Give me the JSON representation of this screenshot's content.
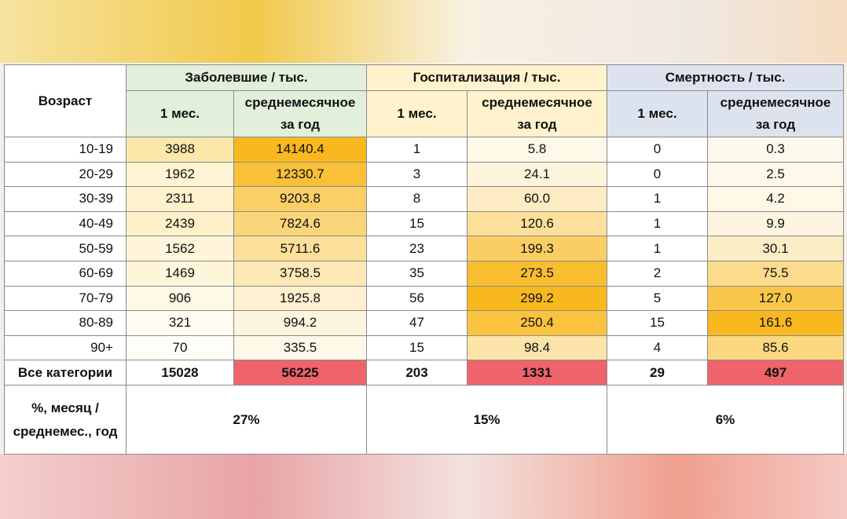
{
  "header": {
    "age": "Возраст",
    "groups": [
      {
        "title": "Заболевшие / тыс.",
        "columns": [
          "1 мес.",
          "среднемесячное за год"
        ]
      },
      {
        "title": "Госпитализация / тыс.",
        "columns": [
          "1 мес.",
          "среднемесячное за год"
        ]
      },
      {
        "title": "Смертность / тыс.",
        "columns": [
          "1 мес.",
          "среднемесячное за год"
        ]
      }
    ]
  },
  "rows": [
    [
      "10-19",
      "3988",
      "14140.4",
      "1",
      "5.8",
      "0",
      "0.3"
    ],
    [
      "20-29",
      "1962",
      "12330.7",
      "3",
      "24.1",
      "0",
      "2.5"
    ],
    [
      "30-39",
      "2311",
      "9203.8",
      "8",
      "60.0",
      "1",
      "4.2"
    ],
    [
      "40-49",
      "2439",
      "7824.6",
      "15",
      "120.6",
      "1",
      "9.9"
    ],
    [
      "50-59",
      "1562",
      "5711.6",
      "23",
      "199.3",
      "1",
      "30.1"
    ],
    [
      "60-69",
      "1469",
      "3758.5",
      "35",
      "273.5",
      "2",
      "75.5"
    ],
    [
      "70-79",
      "906",
      "1925.8",
      "56",
      "299.2",
      "5",
      "127.0"
    ],
    [
      "80-89",
      "321",
      "994.2",
      "47",
      "250.4",
      "15",
      "161.6"
    ],
    [
      "90+",
      "70",
      "335.5",
      "15",
      "98.4",
      "4",
      "85.6"
    ]
  ],
  "total": [
    "Все категории",
    "15028",
    "56225",
    "203",
    "1331",
    "29",
    "497"
  ],
  "ratio": {
    "label": "%, месяц / среднемес., год",
    "values": [
      "27%",
      "15%",
      "6%"
    ]
  }
}
